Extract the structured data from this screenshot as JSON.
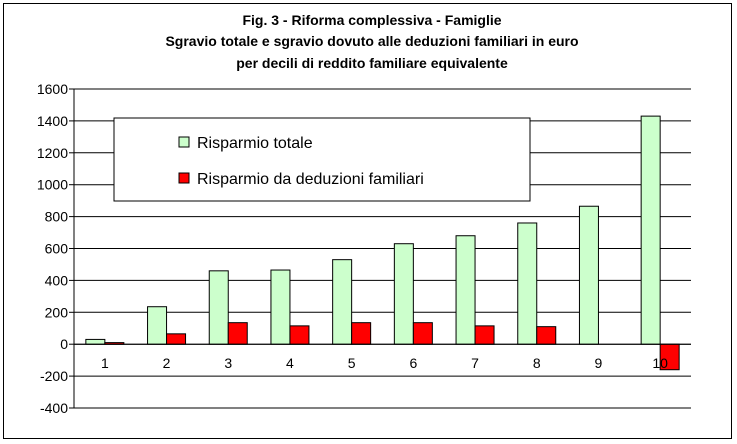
{
  "chart_data": {
    "type": "bar",
    "title_lines": [
      "Fig. 3 - Riforma complessiva - Famiglie",
      "Sgravio totale e sgravio dovuto alle deduzioni familiari in euro",
      "per decili di reddito familiare equivalente"
    ],
    "categories": [
      "1",
      "2",
      "3",
      "4",
      "5",
      "6",
      "7",
      "8",
      "9",
      "10"
    ],
    "series": [
      {
        "name": "Risparmio totale",
        "color": "#ccffcc",
        "values": [
          30,
          235,
          460,
          465,
          530,
          630,
          680,
          760,
          865,
          1430
        ]
      },
      {
        "name": "Risparmio da deduzioni familiari",
        "color": "#ff0000",
        "values": [
          10,
          65,
          135,
          115,
          135,
          135,
          115,
          110,
          0,
          -160
        ]
      }
    ],
    "ylim": [
      -400,
      1600
    ],
    "yticks": [
      -400,
      -200,
      0,
      200,
      400,
      600,
      800,
      1000,
      1200,
      1400,
      1600
    ],
    "plot_background": "#ffffff",
    "gridlines": true,
    "legend_position": "top-left"
  }
}
